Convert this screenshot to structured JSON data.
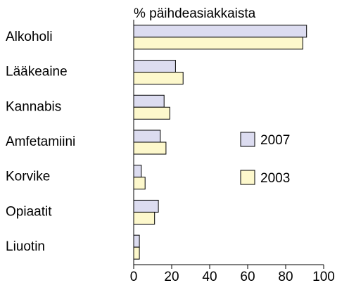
{
  "chart_data": {
    "type": "bar",
    "orientation": "horizontal",
    "title": "% päihdeasiakkaista",
    "categories": [
      "Alkoholi",
      "Lääkeaine",
      "Kannabis",
      "Amfetamiini",
      "Korvike",
      "Opiaatit",
      "Liuotin"
    ],
    "series": [
      {
        "name": "2007",
        "color": "#dcdcf0",
        "values": [
          91,
          22,
          16,
          14,
          4,
          13,
          3
        ]
      },
      {
        "name": "2003",
        "color": "#fdf8cc",
        "values": [
          89,
          26,
          19,
          17,
          6,
          11,
          3
        ]
      }
    ],
    "xlim": [
      0,
      100
    ],
    "xticks": [
      0,
      20,
      40,
      60,
      80,
      100
    ],
    "legend": "right"
  }
}
